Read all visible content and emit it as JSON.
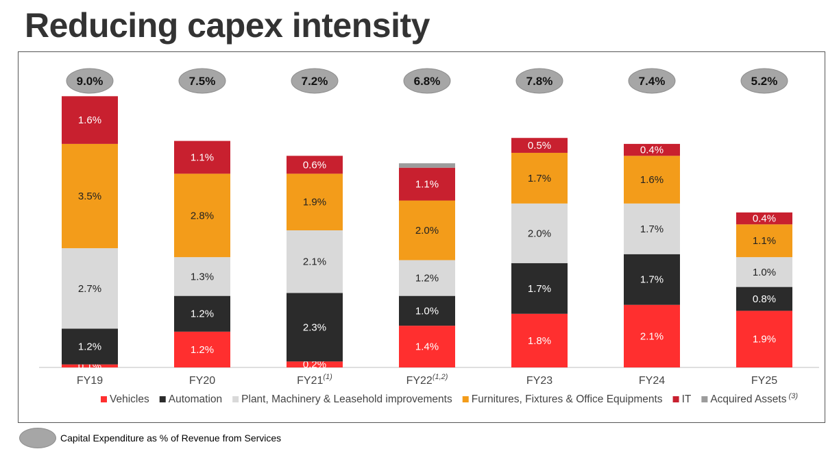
{
  "title": "Reducing capex intensity",
  "note": {
    "text": "Capital Expenditure as % of Revenue from Services",
    "color": "#a6a6a6"
  },
  "chart_data": {
    "type": "bar",
    "stacked": true,
    "categories": [
      "FY19",
      "FY20",
      "FY21",
      "FY22",
      "FY23",
      "FY24",
      "FY25"
    ],
    "category_superscripts": [
      "",
      "",
      "(1)",
      "(1,2)",
      "",
      "",
      ""
    ],
    "totals": [
      "9.0%",
      "7.5%",
      "7.2%",
      "6.8%",
      "7.8%",
      "7.4%",
      "5.2%"
    ],
    "series": [
      {
        "name": "Vehicles",
        "color": "#ff2f2f",
        "label_color": "#ffffff",
        "values": [
          0.1,
          1.2,
          0.2,
          1.4,
          1.8,
          2.1,
          1.9
        ],
        "labels": [
          "0.1%",
          "1.2%",
          "0.2%",
          "1.4%",
          "1.8%",
          "2.1%",
          "1.9%"
        ]
      },
      {
        "name": "Automation",
        "color": "#2b2b2b",
        "label_color": "#ffffff",
        "values": [
          1.2,
          1.2,
          2.3,
          1.0,
          1.7,
          1.7,
          0.8
        ],
        "labels": [
          "1.2%",
          "1.2%",
          "2.3%",
          "1.0%",
          "1.7%",
          "1.7%",
          "0.8%"
        ]
      },
      {
        "name": "Plant, Machinery & Leasehold improvements",
        "color": "#d9d9d9",
        "label_color": "#222222",
        "values": [
          2.7,
          1.3,
          2.1,
          1.2,
          2.0,
          1.7,
          1.0
        ],
        "labels": [
          "2.7%",
          "1.3%",
          "2.1%",
          "1.2%",
          "2.0%",
          "1.7%",
          "1.0%"
        ]
      },
      {
        "name": "Furnitures, Fixtures & Office Equipments",
        "color": "#f39c1a",
        "label_color": "#222222",
        "values": [
          3.5,
          2.8,
          1.9,
          2.0,
          1.7,
          1.6,
          1.1
        ],
        "labels": [
          "3.5%",
          "2.8%",
          "1.9%",
          "2.0%",
          "1.7%",
          "1.6%",
          "1.1%"
        ]
      },
      {
        "name": "IT",
        "color": "#c8202f",
        "label_color": "#ffffff",
        "values": [
          1.6,
          1.1,
          0.6,
          1.1,
          0.5,
          0.4,
          0.4
        ],
        "labels": [
          "1.6%",
          "1.1%",
          "0.6%",
          "1.1%",
          "0.5%",
          "0.4%",
          "0.4%"
        ]
      },
      {
        "name": "Acquired Assets",
        "name_superscript": "(3)",
        "color": "#9c9c9c",
        "label_color": "#222222",
        "values": [
          0,
          0,
          0,
          0.15,
          0,
          0,
          0
        ],
        "labels": [
          "",
          "",
          "",
          "",
          "",
          "",
          ""
        ]
      }
    ],
    "ylim": [
      0,
      9.2
    ],
    "legend_position": "bottom",
    "grid": false
  }
}
